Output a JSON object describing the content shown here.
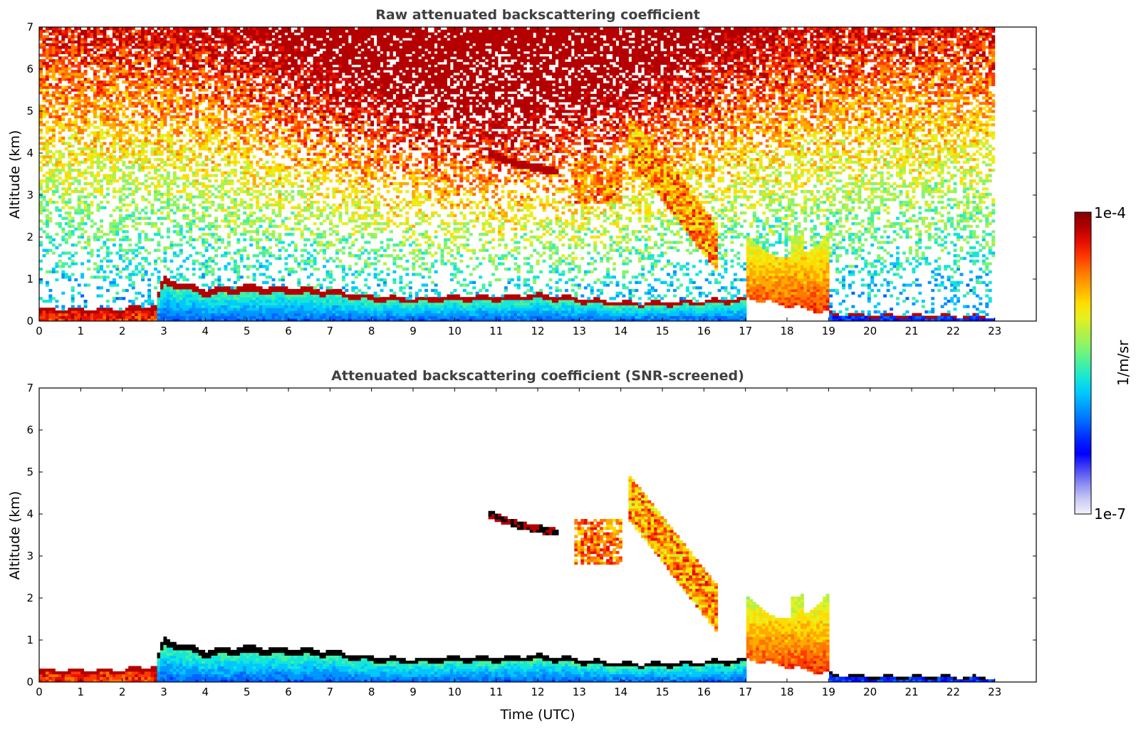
{
  "colors": {
    "colormap": [
      "#f2f2fc",
      "#c8c8f4",
      "#8c8cf2",
      "#4646f5",
      "#0000ff",
      "#0028ff",
      "#0064ff",
      "#0096ff",
      "#00c8ff",
      "#14e6d8",
      "#46f0a0",
      "#82f56e",
      "#b4f046",
      "#e6f01e",
      "#ffdc00",
      "#ffaa00",
      "#ff7800",
      "#ff3c00",
      "#e60f00",
      "#b40000",
      "#800000"
    ],
    "frame": "#000000",
    "overflow_black": "#000000"
  },
  "colorbar": {
    "label": "1/m/sr",
    "max_label": "1e-4",
    "min_label": "1e-7",
    "scale": "log"
  },
  "chart_data": [
    {
      "type": "heatmap",
      "title": "Raw attenuated backscattering coefficient",
      "xlabel": "",
      "ylabel": "Altitude (km)",
      "xlim": [
        0,
        24
      ],
      "ylim": [
        0,
        7
      ],
      "xticks": [
        "0",
        "1",
        "2",
        "3",
        "4",
        "5",
        "6",
        "7",
        "8",
        "9",
        "10",
        "11",
        "12",
        "13",
        "14",
        "15",
        "16",
        "17",
        "18",
        "19",
        "20",
        "21",
        "22",
        "23"
      ],
      "yticks": [
        "0",
        "1",
        "2",
        "3",
        "4",
        "5",
        "6",
        "7"
      ],
      "data_end_time": 23,
      "features": {
        "boundary_layer_top_km": [
          [
            0,
            0.3
          ],
          [
            2,
            0.3
          ],
          [
            2.8,
            0.4
          ],
          [
            3,
            1.05
          ],
          [
            4,
            0.75
          ],
          [
            5,
            0.85
          ],
          [
            6,
            0.8
          ],
          [
            7,
            0.75
          ],
          [
            8,
            0.6
          ],
          [
            9,
            0.55
          ],
          [
            10,
            0.6
          ],
          [
            11,
            0.6
          ],
          [
            12,
            0.65
          ],
          [
            13,
            0.55
          ],
          [
            14,
            0.45
          ],
          [
            15,
            0.45
          ],
          [
            16,
            0.5
          ],
          [
            17,
            0.55
          ],
          [
            19,
            0.2
          ],
          [
            20,
            0.15
          ],
          [
            23,
            0.12
          ]
        ],
        "elevated_layer_11_12h_km": [
          [
            10.8,
            4.0
          ],
          [
            11.5,
            3.75
          ],
          [
            12.0,
            3.65
          ],
          [
            12.5,
            3.55
          ]
        ],
        "cloud_13_14h_km": {
          "t_range": [
            12.9,
            14.0
          ],
          "alt_range": [
            2.8,
            3.9
          ]
        },
        "fallstreak_14_16h_km": {
          "t_range": [
            14.2,
            16.3
          ],
          "alt_range": [
            1.6,
            4.6
          ]
        },
        "convective_17_19h_km": {
          "t_range": [
            17.0,
            19.0
          ],
          "alt_range": [
            0,
            2.1
          ]
        }
      }
    },
    {
      "type": "heatmap",
      "title": "Attenuated backscattering coefficient (SNR-screened)",
      "xlabel": "Time (UTC)",
      "ylabel": "Altitude (km)",
      "xlim": [
        0,
        24
      ],
      "ylim": [
        0,
        7
      ],
      "xticks": [
        "0",
        "1",
        "2",
        "3",
        "4",
        "5",
        "6",
        "7",
        "8",
        "9",
        "10",
        "11",
        "12",
        "13",
        "14",
        "15",
        "16",
        "17",
        "18",
        "19",
        "20",
        "21",
        "22",
        "23"
      ],
      "yticks": [
        "0",
        "1",
        "2",
        "3",
        "4",
        "5",
        "6",
        "7"
      ],
      "data_end_time": 23,
      "screened": true
    }
  ]
}
